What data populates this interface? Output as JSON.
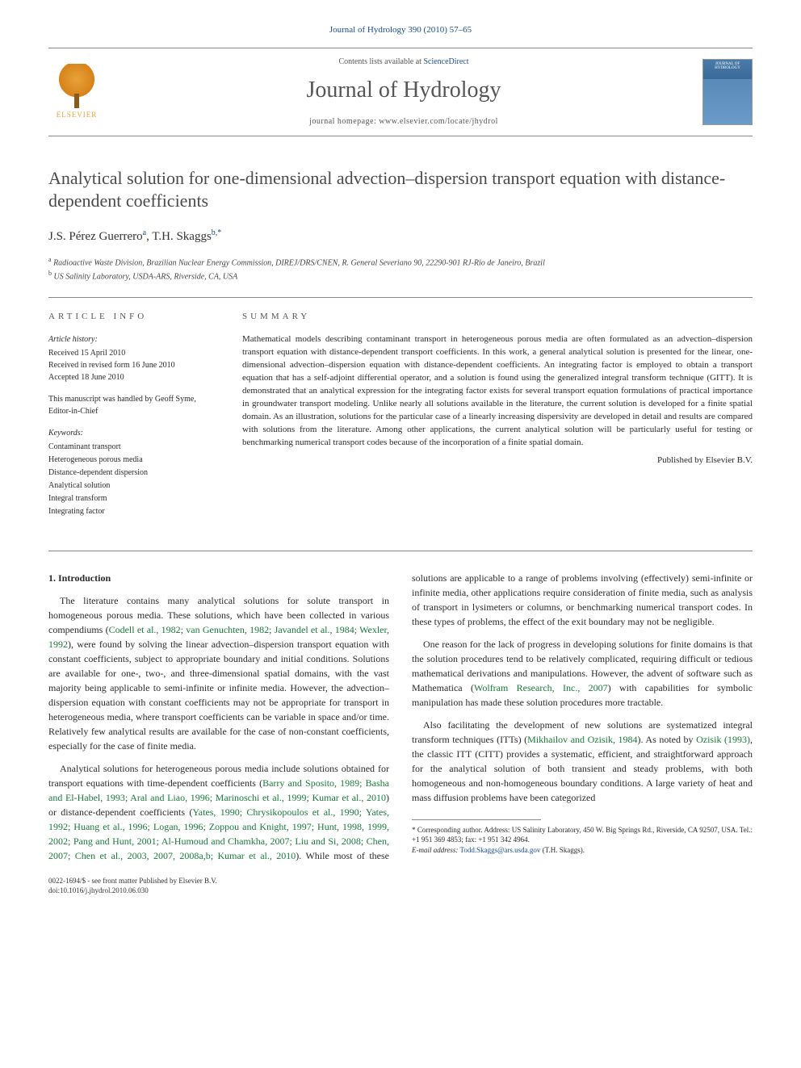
{
  "citation": "Journal of Hydrology 390 (2010) 57–65",
  "header": {
    "contents_prefix": "Contents lists available at ",
    "contents_link": "ScienceDirect",
    "journal_title": "Journal of Hydrology",
    "homepage_prefix": "journal homepage: ",
    "homepage_url": "www.elsevier.com/locate/jhydrol",
    "publisher": "ELSEVIER"
  },
  "article": {
    "title": "Analytical solution for one-dimensional advection–dispersion transport equation with distance-dependent coefficients",
    "authors_html": "J.S. Pérez Guerrero",
    "author1": "J.S. Pérez Guerrero",
    "author1_sup": "a",
    "author2": "T.H. Skaggs",
    "author2_sup": "b,*",
    "affil_a": "Radioactive Waste Division, Brazilian Nuclear Energy Commission, DIREJ/DRS/CNEN, R. General Severiano 90, 22290-901 RJ-Rio de Janeiro, Brazil",
    "affil_b": "US Salinity Laboratory, USDA-ARS, Riverside, CA, USA"
  },
  "info": {
    "header": "ARTICLE INFO",
    "history_label": "Article history:",
    "received": "Received 15 April 2010",
    "revised": "Received in revised form 16 June 2010",
    "accepted": "Accepted 18 June 2010",
    "handled": "This manuscript was handled by Geoff Syme, Editor-in-Chief",
    "keywords_label": "Keywords:",
    "keywords": [
      "Contaminant transport",
      "Heterogeneous porous media",
      "Distance-dependent dispersion",
      "Analytical solution",
      "Integral transform",
      "Integrating factor"
    ]
  },
  "summary": {
    "header": "SUMMARY",
    "text": "Mathematical models describing contaminant transport in heterogeneous porous media are often formulated as an advection–dispersion transport equation with distance-dependent transport coefficients. In this work, a general analytical solution is presented for the linear, one-dimensional advection–dispersion equation with distance-dependent coefficients. An integrating factor is employed to obtain a transport equation that has a self-adjoint differential operator, and a solution is found using the generalized integral transform technique (GITT). It is demonstrated that an analytical expression for the integrating factor exists for several transport equation formulations of practical importance in groundwater transport modeling. Unlike nearly all solutions available in the literature, the current solution is developed for a finite spatial domain. As an illustration, solutions for the particular case of a linearly increasing dispersivity are developed in detail and results are compared with solutions from the literature. Among other applications, the current analytical solution will be particularly useful for testing or benchmarking numerical transport codes because of the incorporation of a finite spatial domain.",
    "published_by": "Published by Elsevier B.V."
  },
  "body": {
    "section1_heading": "1. Introduction",
    "p1a": "The literature contains many analytical solutions for solute transport in homogeneous porous media. These solutions, which have been collected in various compendiums (",
    "p1_ref1": "Codell et al., 1982; van Genuchten, 1982; Javandel et al., 1984; Wexler, 1992",
    "p1b": "), were found by solving the linear advection–dispersion transport equation with constant coefficients, subject to appropriate boundary and initial conditions. Solutions are available for one-, two-, and three-dimensional spatial domains, with the vast majority being applicable to semi-infinite or infinite media. However, the advection–dispersion equation with constant coefficients may not be appropriate for transport in heterogeneous media, where transport coefficients can be variable in space and/or time. Relatively few analytical results are available for the case of non-constant coefficients, especially for the case of finite media.",
    "p2a": "Analytical solutions for heterogeneous porous media include solutions obtained for transport equations with time-dependent coefficients (",
    "p2_ref1": "Barry and Sposito, 1989; Basha and El-Habel, 1993; Aral and Liao, 1996; Marinoschi et al., 1999; Kumar et al., 2010",
    "p2b": ") or distance-dependent coefficients (",
    "p2_ref2": "Yates, 1990; Chrysikopoulos et al., 1990; Yates, 1992; Huang et al., 1996; Logan, 1996; Zoppou and Knight, 1997; Hunt, 1998, 1999, 2002; Pang and Hunt, 2001; Al-Humoud and Chamkha, 2007; Liu and Si, 2008; Chen, 2007; Chen et al., 2003, 2007, 2008a,b; Kumar et al., 2010",
    "p2c": "). While most of these solutions are applicable to a range of problems involving (effectively) semi-infinite or infinite media, other applications require consideration of finite media, such as analysis of transport in lysimeters or columns, or benchmarking numerical transport codes. In these types of problems, the effect of the exit boundary may not be negligible.",
    "p3a": "One reason for the lack of progress in developing solutions for finite domains is that the solution procedures tend to be relatively complicated, requiring difficult or tedious mathematical derivations and manipulations. However, the advent of software such as Mathematica (",
    "p3_ref1": "Wolfram Research, Inc., 2007",
    "p3b": ") with capabilities for symbolic manipulation has made these solution procedures more tractable.",
    "p4a": "Also facilitating the development of new solutions are systematized integral transform techniques (ITTs) (",
    "p4_ref1": "Mikhailov and Ozisik, 1984",
    "p4b": "). As noted by ",
    "p4_ref2": "Ozisik (1993)",
    "p4c": ", the classic ITT (CITT) provides a systematic, efficient, and straightforward approach for the analytical solution of both transient and steady problems, with both homogeneous and non-homogeneous boundary conditions. A large variety of heat and mass diffusion problems have been categorized"
  },
  "footnote": {
    "corr": "* Corresponding author. Address: US Salinity Laboratory, 450 W. Big Springs Rd., Riverside, CA 92507, USA. Tel.: +1 951 369 4853; fax: +1 951 342 4964.",
    "email_label": "E-mail address:",
    "email": "Todd.Skaggs@ars.usda.gov",
    "email_who": "(T.H. Skaggs)."
  },
  "bottom": {
    "copyright": "0022-1694/$ - see front matter Published by Elsevier B.V.",
    "doi": "doi:10.1016/j.jhydrol.2010.06.030"
  },
  "colors": {
    "link_blue": "#1a4d8f",
    "ref_green": "#1a7a3a",
    "text_gray": "#4a4a4a",
    "elsevier_orange": "#e8a23a"
  }
}
